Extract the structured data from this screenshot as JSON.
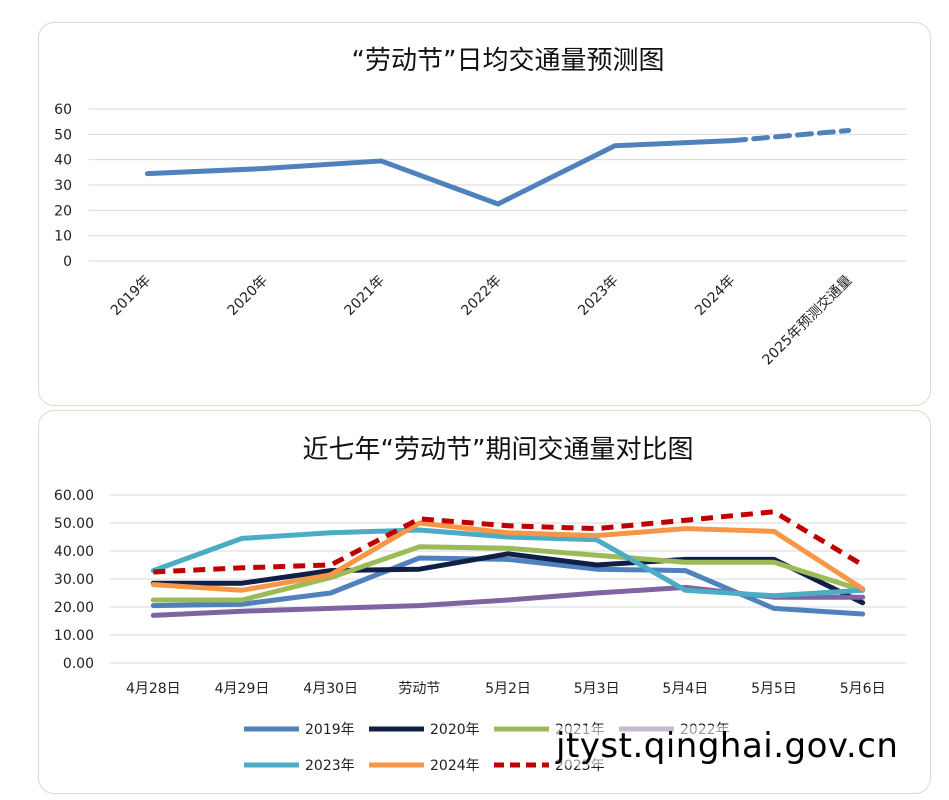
{
  "watermark": "jtyst.qinghai.gov.cn",
  "chart_data": [
    {
      "type": "line",
      "title": "“劳动节”日均交通量预测图",
      "categories": [
        "2019年",
        "2020年",
        "2021年",
        "2022年",
        "2023年",
        "2024年",
        "2025年预测交通量"
      ],
      "yticks": [
        "0",
        "10",
        "20",
        "30",
        "40",
        "50",
        "60"
      ],
      "ylim": [
        0,
        60
      ],
      "grid": true,
      "series": [
        {
          "values": [
            34.5,
            36.5,
            39.5,
            22.5,
            45.5,
            47.5,
            51.5
          ],
          "color": "#4f81bd",
          "dashed_last_segment": true
        }
      ]
    },
    {
      "type": "line",
      "title": "近七年“劳动节”期间交通量对比图",
      "categories": [
        "4月28日",
        "4月29日",
        "4月30日",
        "劳动节",
        "5月2日",
        "5月3日",
        "5月4日",
        "5月5日",
        "5月6日"
      ],
      "yticks": [
        "0.00",
        "10.00",
        "20.00",
        "30.00",
        "40.00",
        "50.00",
        "60.00"
      ],
      "ylim": [
        0,
        60
      ],
      "grid": true,
      "legend": "bottom",
      "series": [
        {
          "name": "2019年",
          "color": "#4f81bd",
          "dash": false,
          "values": [
            20.5,
            21,
            25,
            37.5,
            37,
            33.5,
            33,
            19.5,
            17.5
          ]
        },
        {
          "name": "2020年",
          "color": "#0f1f45",
          "dash": false,
          "values": [
            28.5,
            28.5,
            33,
            33.5,
            39,
            35,
            37,
            37,
            21.5
          ]
        },
        {
          "name": "2021年",
          "color": "#9bbb59",
          "dash": false,
          "values": [
            22.5,
            22.5,
            30.5,
            41.5,
            41,
            38.5,
            36,
            36,
            26
          ]
        },
        {
          "name": "2022年",
          "color": "#8064a2",
          "dash": false,
          "values": [
            17,
            18.5,
            19.5,
            20.5,
            22.5,
            25,
            27,
            23.5,
            23.5
          ]
        },
        {
          "name": "2023年",
          "color": "#4bacc6",
          "dash": false,
          "values": [
            33,
            44.5,
            46.5,
            47.5,
            45,
            44,
            26,
            24,
            26
          ]
        },
        {
          "name": "2024年",
          "color": "#f79646",
          "dash": false,
          "values": [
            28,
            26,
            31.5,
            50,
            46.5,
            45.5,
            48,
            47,
            26.5
          ]
        },
        {
          "name": "2025年",
          "color": "#c00000",
          "dash": true,
          "values": [
            32.5,
            34,
            35,
            51.5,
            49,
            48,
            51,
            54,
            35
          ]
        }
      ]
    }
  ]
}
